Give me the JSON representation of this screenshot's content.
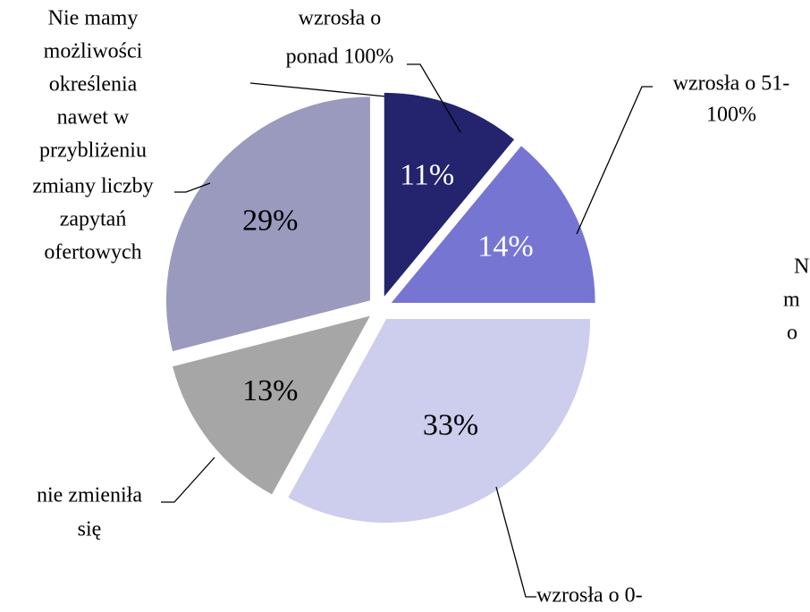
{
  "chart_data": {
    "type": "pie",
    "categories": [
      [
        "wzrosła o",
        "ponad 100%"
      ],
      [
        "wzrosła o 51-",
        "100%"
      ],
      [
        "wzrosła o 0-"
      ],
      [
        "nie zmieniła",
        "się"
      ],
      [
        "Nie mamy",
        "możliwości",
        "określenia",
        "nawet w",
        "przybliżeniu",
        "zmiany liczby",
        "zapytań",
        "ofertowych"
      ]
    ],
    "values": [
      11,
      14,
      33,
      13,
      29
    ],
    "value_labels": [
      "11%",
      "14%",
      "33%",
      "13%",
      "29%"
    ],
    "colors": [
      "#23236e",
      "#7676d2",
      "#cdcdee",
      "#a6a6a6",
      "#9a9abf"
    ],
    "value_label_colors": [
      "#ffffff",
      "#ffffff",
      "#000000",
      "#000000",
      "#000000"
    ],
    "annotations": [
      "N",
      "m",
      "o"
    ]
  }
}
